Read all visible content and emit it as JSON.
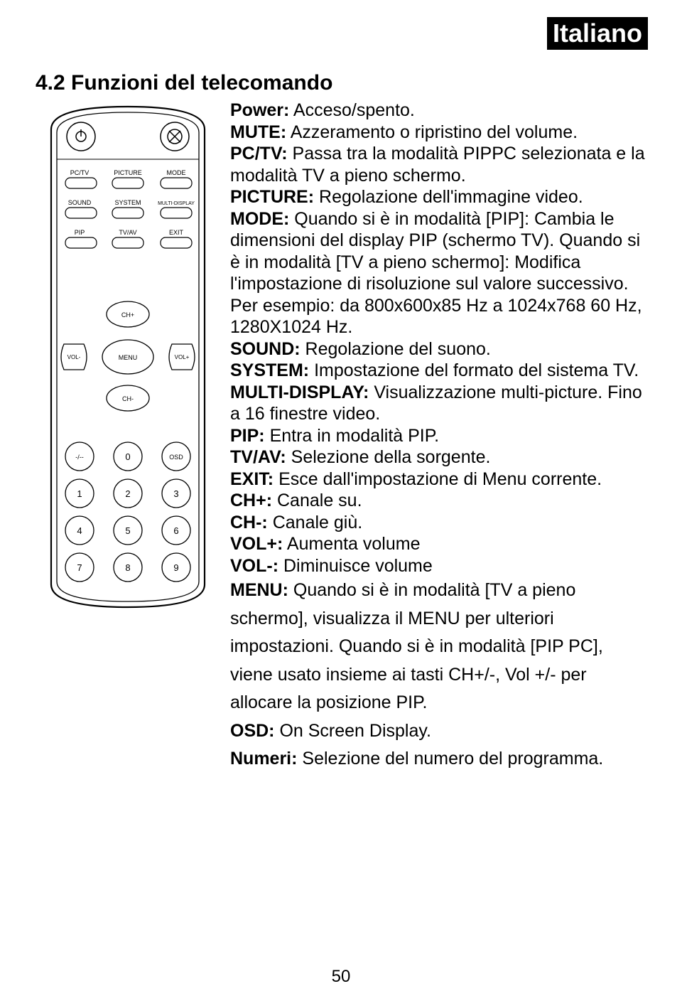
{
  "language_badge": "Italiano",
  "section_title": "4.2 Funzioni del telecomando",
  "entries": [
    {
      "label": "Power:",
      "text": " Acceso/spento."
    },
    {
      "label": "MUTE:",
      "text": " Azzeramento o ripristino del volume."
    },
    {
      "label": "PC/TV:",
      "text": " Passa tra la modalità PIPPC selezionata e la modalità TV a pieno schermo."
    },
    {
      "label": "PICTURE:",
      "text": " Regolazione dell'immagine video."
    },
    {
      "label": "MODE:",
      "text": " Quando si è in modalità [PIP]: Cambia le dimensioni del display PIP (schermo TV). Quando si è in modalità [TV a pieno schermo]: Modifica l'impostazione di risoluzione sul valore successivo. Per esempio: da 800x600x85 Hz a 1024x768 60 Hz, 1280X1024 Hz."
    },
    {
      "label": "SOUND:",
      "text": " Regolazione del suono."
    },
    {
      "label": "SYSTEM:",
      "text": " Impostazione del formato del sistema TV."
    },
    {
      "label": "MULTI-DISPLAY:",
      "text": " Visualizzazione multi-picture. Fino a 16 finestre video."
    },
    {
      "label": "PIP:",
      "text": "  Entra in modalità PIP."
    },
    {
      "label": "TV/AV:",
      "text": " Selezione della sorgente."
    },
    {
      "label": "EXIT:",
      "text": " Esce dall'impostazione di Menu corrente."
    },
    {
      "label": "CH+:",
      "text": " Canale su."
    },
    {
      "label": "CH-:",
      "text": " Canale giù."
    },
    {
      "label": "VOL+:",
      "text": " Aumenta volume"
    },
    {
      "label": "VOL-:",
      "text": " Diminuisce volume"
    }
  ],
  "spaced_entries": [
    {
      "label": "MENU:",
      "text": " Quando si è in modalità [TV a pieno schermo], visualizza il MENU per ulteriori impostazioni. Quando si è in modalità [PIP PC], viene usato insieme ai tasti CH+/-, Vol +/- per allocare la posizione PIP."
    },
    {
      "label": "OSD:",
      "text": " On Screen Display."
    },
    {
      "label": "Numeri:",
      "text": " Selezione del numero del programma."
    }
  ],
  "page_number": "50",
  "remote": {
    "row1_labels": [
      "PC/TV",
      "PICTURE",
      "MODE"
    ],
    "row2_labels": [
      "SOUND",
      "SYSTEM",
      "MULTI-DISPLAY"
    ],
    "row3_labels": [
      "PIP",
      "TV/AV",
      "EXIT"
    ],
    "nav_labels": {
      "up": "CH+",
      "down": "CH-",
      "left": "VOL-",
      "right": "VOL+",
      "center": "MENU"
    },
    "keypad_row1": [
      "-/--",
      "0",
      "OSD"
    ],
    "keypad": [
      [
        "1",
        "2",
        "3"
      ],
      [
        "4",
        "5",
        "6"
      ],
      [
        "7",
        "8",
        "9"
      ]
    ],
    "colors": {
      "outline": "#000000",
      "fill": "#ffffff",
      "button_fill": "#ffffff"
    }
  }
}
